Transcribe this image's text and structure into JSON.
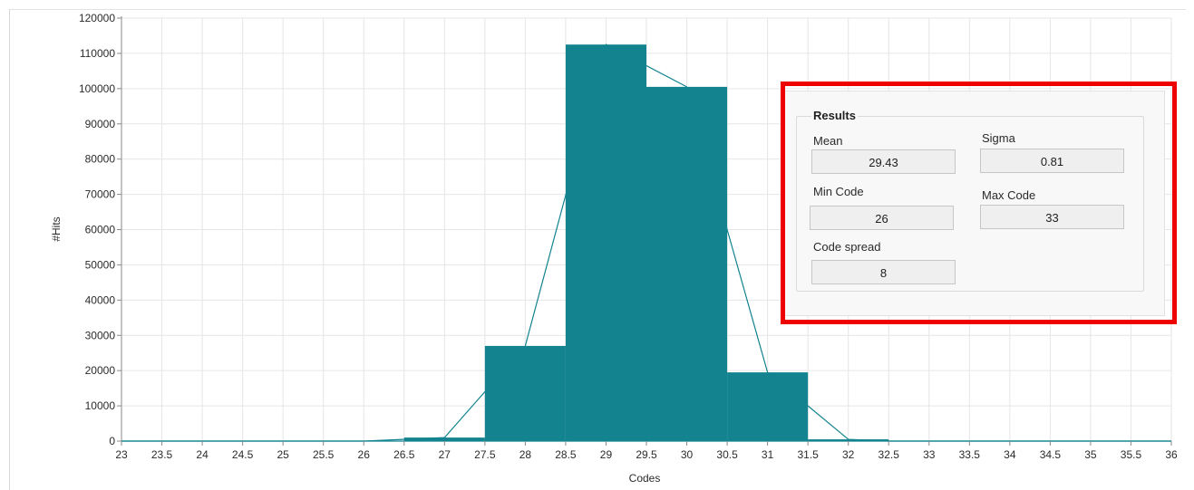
{
  "chart_data": {
    "type": "bar",
    "xlabel": "Codes",
    "ylabel": "#Hits",
    "xlim": [
      23,
      36
    ],
    "ylim": [
      0,
      120000
    ],
    "grid": true,
    "x_ticks": [
      "23",
      "23.5",
      "24",
      "24.5",
      "25",
      "25.5",
      "26",
      "26.5",
      "27",
      "27.5",
      "28",
      "28.5",
      "29",
      "29.5",
      "30",
      "30.5",
      "31",
      "31.5",
      "32",
      "32.5",
      "33",
      "33.5",
      "34",
      "34.5",
      "35",
      "35.5",
      "36"
    ],
    "y_ticks": [
      "0",
      "10000",
      "20000",
      "30000",
      "40000",
      "50000",
      "60000",
      "70000",
      "80000",
      "90000",
      "100000",
      "110000",
      "120000"
    ],
    "bars": [
      {
        "x0": 26.5,
        "x1": 27.5,
        "value": 1000
      },
      {
        "x0": 27.5,
        "x1": 28.5,
        "value": 27000
      },
      {
        "x0": 28.5,
        "x1": 29.5,
        "value": 112500
      },
      {
        "x0": 29.5,
        "x1": 30.5,
        "value": 100500
      },
      {
        "x0": 30.5,
        "x1": 31.5,
        "value": 19500
      },
      {
        "x0": 31.5,
        "x1": 32.5,
        "value": 500
      }
    ],
    "line": {
      "x": [
        23,
        26,
        27,
        28,
        29,
        30,
        31,
        32,
        32.5,
        36
      ],
      "y": [
        0,
        0,
        1000,
        27000,
        112500,
        100500,
        19500,
        500,
        0,
        0
      ]
    },
    "color": "#12838f"
  },
  "results": {
    "title": "Results",
    "mean_label": "Mean",
    "mean_value": "29.43",
    "sigma_label": "Sigma",
    "sigma_value": "0.81",
    "min_code_label": "Min Code",
    "min_code_value": "26",
    "max_code_label": "Max Code",
    "max_code_value": "33",
    "code_spread_label": "Code spread",
    "code_spread_value": "8"
  },
  "highlight_color": "#ee0000"
}
